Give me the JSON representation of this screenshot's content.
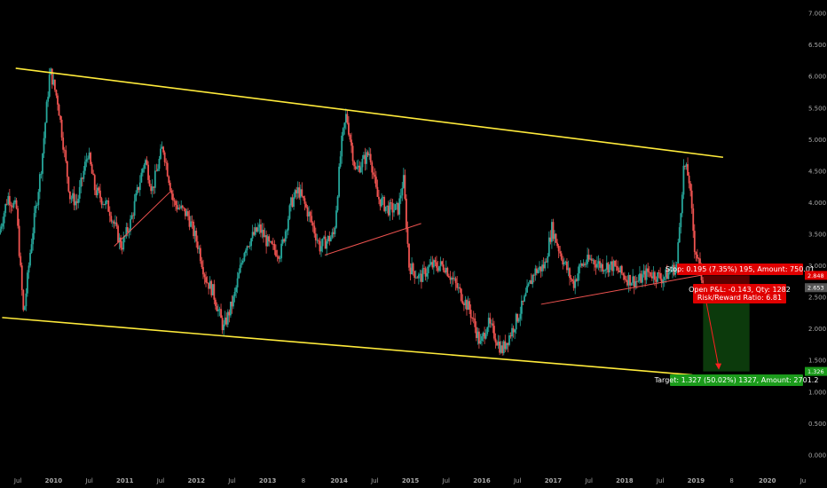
{
  "chart_data": {
    "type": "candlestick",
    "ylim": [
      -0.1,
      7.1
    ],
    "y_ticks": [
      "7.000",
      "6.500",
      "6.000",
      "5.500",
      "5.000",
      "4.500",
      "4.000",
      "3.500",
      "3.000",
      "2.500",
      "2.000",
      "1.500",
      "1.000",
      "0.500",
      "0.000"
    ],
    "x_ticks": [
      "Jul",
      "2010",
      "Jul",
      "2011",
      "Jul",
      "2012",
      "Jul",
      "2013",
      "8",
      "2014",
      "Jul",
      "2015",
      "Jul",
      "2016",
      "Jul",
      "2017",
      "Jul",
      "2018",
      "Jul",
      "2019",
      "8",
      "2020",
      "Ju"
    ],
    "x_range": [
      2009.25,
      2020.5
    ],
    "colors": {
      "up": "#26a69a",
      "down": "#ef5350",
      "trend": "#ffeb3b",
      "support": "#ef5350",
      "stop": "#ff0000",
      "target": "#1b8d1b",
      "target_zone": "#0c3a0c",
      "stop_zone": "#5a0000"
    },
    "anchors": [
      [
        2009.25,
        3.5
      ],
      [
        2009.38,
        4.1
      ],
      [
        2009.5,
        3.9
      ],
      [
        2009.6,
        2.2
      ],
      [
        2009.7,
        3.3
      ],
      [
        2009.85,
        4.6
      ],
      [
        2009.97,
        6.1
      ],
      [
        2010.08,
        5.6
      ],
      [
        2010.25,
        4.1
      ],
      [
        2010.35,
        4.0
      ],
      [
        2010.5,
        4.8
      ],
      [
        2010.6,
        4.2
      ],
      [
        2010.8,
        3.9
      ],
      [
        2010.97,
        3.3
      ],
      [
        2011.1,
        3.7
      ],
      [
        2011.3,
        4.7
      ],
      [
        2011.4,
        4.2
      ],
      [
        2011.55,
        4.9
      ],
      [
        2011.7,
        4.0
      ],
      [
        2011.9,
        3.8
      ],
      [
        2012.05,
        3.3
      ],
      [
        2012.15,
        2.8
      ],
      [
        2012.25,
        2.6
      ],
      [
        2012.4,
        2.0
      ],
      [
        2012.55,
        2.5
      ],
      [
        2012.7,
        3.3
      ],
      [
        2012.9,
        3.6
      ],
      [
        2013.05,
        3.3
      ],
      [
        2013.2,
        3.2
      ],
      [
        2013.35,
        4.0
      ],
      [
        2013.45,
        4.2
      ],
      [
        2013.6,
        3.8
      ],
      [
        2013.75,
        3.3
      ],
      [
        2013.95,
        3.5
      ],
      [
        2014.05,
        4.9
      ],
      [
        2014.12,
        5.4
      ],
      [
        2014.25,
        4.5
      ],
      [
        2014.45,
        4.8
      ],
      [
        2014.55,
        4.1
      ],
      [
        2014.7,
        3.9
      ],
      [
        2014.85,
        3.9
      ],
      [
        2014.92,
        4.4
      ],
      [
        2015.0,
        3.0
      ],
      [
        2015.15,
        2.8
      ],
      [
        2015.3,
        3.0
      ],
      [
        2015.5,
        3.0
      ],
      [
        2015.7,
        2.6
      ],
      [
        2015.85,
        2.3
      ],
      [
        2016.0,
        1.75
      ],
      [
        2016.1,
        2.1
      ],
      [
        2016.2,
        1.9
      ],
      [
        2016.3,
        1.65
      ],
      [
        2016.45,
        2.0
      ],
      [
        2016.6,
        2.4
      ],
      [
        2016.75,
        2.9
      ],
      [
        2016.9,
        3.0
      ],
      [
        2017.0,
        3.6
      ],
      [
        2017.12,
        3.2
      ],
      [
        2017.3,
        2.7
      ],
      [
        2017.4,
        3.0
      ],
      [
        2017.55,
        3.1
      ],
      [
        2017.7,
        3.0
      ],
      [
        2017.85,
        3.0
      ],
      [
        2018.05,
        2.8
      ],
      [
        2018.2,
        2.75
      ],
      [
        2018.35,
        2.9
      ],
      [
        2018.55,
        2.8
      ],
      [
        2018.75,
        3.0
      ],
      [
        2018.85,
        4.6
      ],
      [
        2018.92,
        4.4
      ],
      [
        2019.0,
        3.3
      ],
      [
        2019.05,
        3.1
      ],
      [
        2019.1,
        2.8
      ]
    ],
    "trendlines": [
      {
        "kind": "trend",
        "from": [
          2009.47,
          6.13
        ],
        "to": [
          2019.38,
          4.72
        ]
      },
      {
        "kind": "trend",
        "from": [
          2009.28,
          2.18
        ],
        "to": [
          2018.95,
          1.27
        ]
      },
      {
        "kind": "support",
        "from": [
          2010.85,
          3.31
        ],
        "to": [
          2011.65,
          4.19
        ]
      },
      {
        "kind": "support",
        "from": [
          2013.8,
          3.17
        ],
        "to": [
          2015.15,
          3.67
        ]
      },
      {
        "kind": "support",
        "from": [
          2016.83,
          2.39
        ],
        "to": [
          2019.07,
          2.85
        ]
      }
    ],
    "position": {
      "x_start": 2019.1,
      "x_end": 2019.75,
      "entry": 2.653,
      "stop": 2.848,
      "target": 1.326,
      "stop_label": "Stop: 0.195 (7.35%) 195, Amount: 750.01",
      "pnl_line1": "Open P&L: -0.143, Qty: 1282",
      "pnl_line2": "Risk/Reward Ratio: 6.81",
      "target_label": "Target: 1.327 (50.02%) 1327, Amount: 2701.2",
      "stop_tag": "2.848",
      "entry_tag": "2.653",
      "target_tag": "1.326"
    }
  }
}
